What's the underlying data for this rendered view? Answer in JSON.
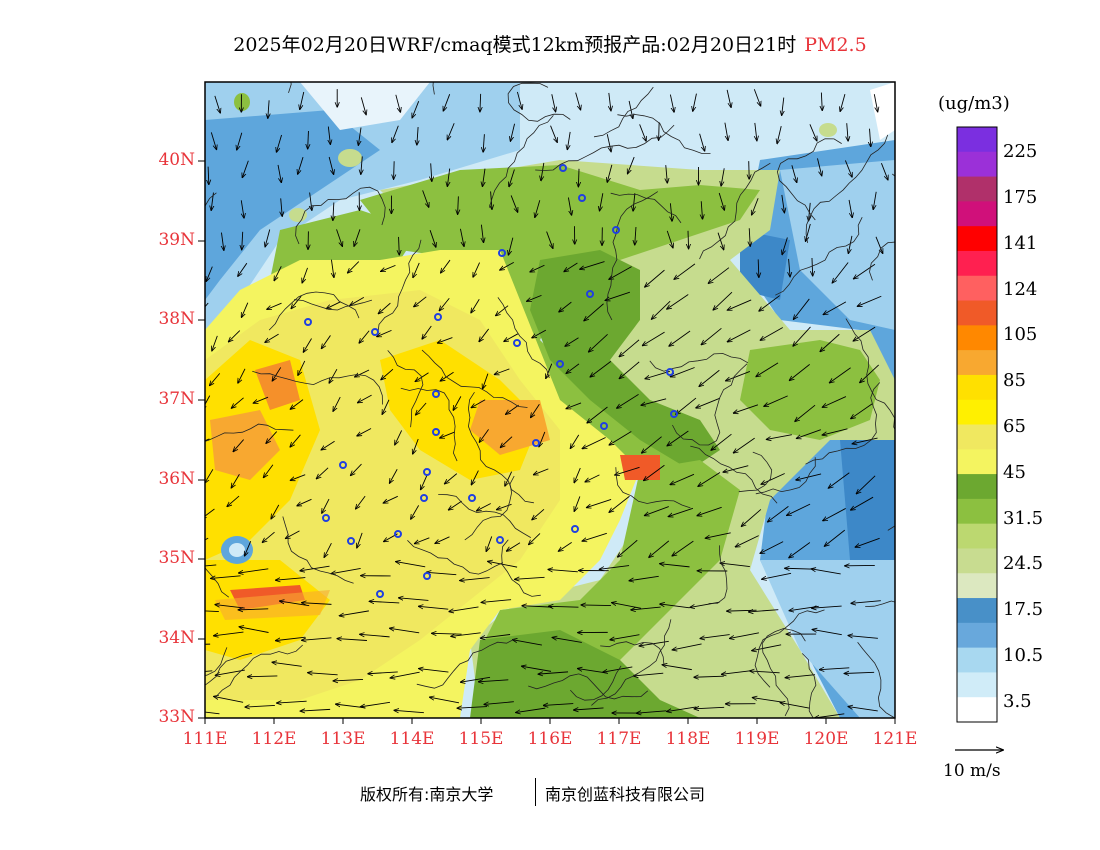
{
  "title": {
    "text": "2025年02月20日WRF/cmaq模式12km预报产品:02月20日21时",
    "product": "PM2.5"
  },
  "axes": {
    "lat_labels": [
      "40N",
      "39N",
      "38N",
      "37N",
      "36N",
      "35N",
      "34N",
      "33N"
    ],
    "lon_labels": [
      "111E",
      "112E",
      "113E",
      "114E",
      "115E",
      "116E",
      "117E",
      "118E",
      "119E",
      "120E",
      "121E"
    ],
    "lat_range": [
      33,
      41
    ],
    "lon_range": [
      111,
      121
    ]
  },
  "colorbar": {
    "unit": "(ug/m3)",
    "labels": [
      "225",
      "175",
      "141",
      "124",
      "105",
      "85",
      "65",
      "45",
      "31.5",
      "24.5",
      "17.5",
      "10.5",
      "3.5"
    ],
    "colors": [
      "#7b2fe0",
      "#9b30d8",
      "#b0306a",
      "#d0107a",
      "#ff0000",
      "#ff2050",
      "#ff6060",
      "#f05a28",
      "#ff8800",
      "#f8a830",
      "#ffe000",
      "#fff000",
      "#f0e860",
      "#f4f460",
      "#6ca830",
      "#8cc040",
      "#bcd870",
      "#c8dc90",
      "#dce8c0",
      "#4890c8",
      "#68a8dc",
      "#a8d8f0",
      "#d0ecf8",
      "#ffffff"
    ]
  },
  "wind_key": {
    "label": "10 m/s"
  },
  "credit": {
    "left": "版权所有:南京大学",
    "right": "南京创蓝科技有限公司"
  },
  "colors": {
    "axis_label": "#e8343a",
    "city_marker": "#2040e0"
  }
}
